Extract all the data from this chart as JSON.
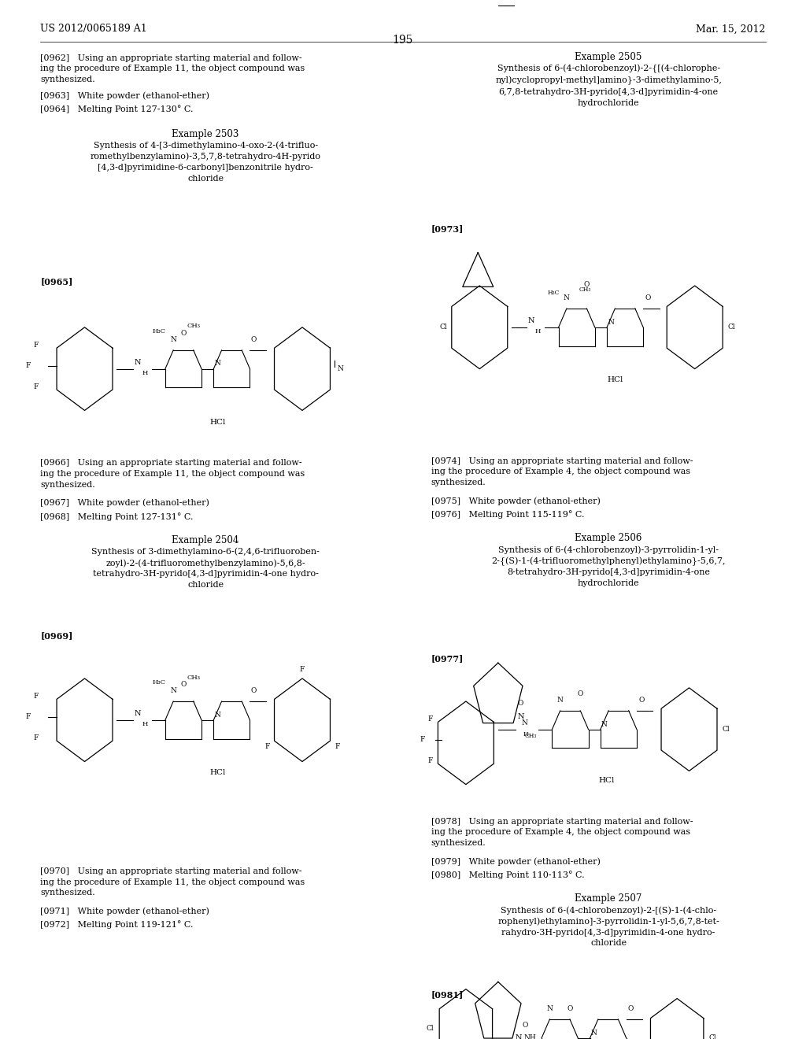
{
  "background_color": "#ffffff",
  "header_left": "US 2012/0065189 A1",
  "header_right": "Mar. 15, 2012",
  "page_number": "195",
  "font_color": "#000000"
}
